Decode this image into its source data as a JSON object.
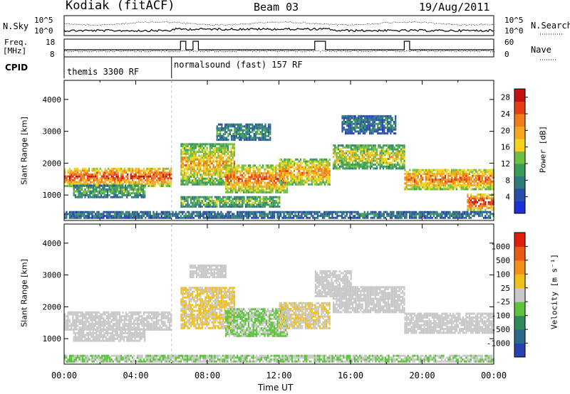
{
  "header": {
    "station": "Kodiak (fitACF)",
    "beam": "Beam 03",
    "date": "19/Aug/2011"
  },
  "sky_panel": {
    "left_label": "N.Sky",
    "right_label": "N.Search",
    "left_ticks": [
      "10^5",
      "10^0"
    ],
    "right_ticks": [
      "10^5",
      "10^0"
    ]
  },
  "freq_panel": {
    "left_label_1": "Freq.",
    "left_label_2": "[MHz]",
    "right_label": "Nave",
    "left_ticks": [
      "18",
      "8"
    ],
    "right_ticks": [
      "60",
      "0"
    ]
  },
  "cpid_panel": {
    "label": "CPID",
    "programs": [
      {
        "name": "themis 3300 RF",
        "start_hour": 0
      },
      {
        "name": "normalsound (fast) 157 RF",
        "start_hour": 6
      }
    ]
  },
  "colors": {
    "grid_line": "#c8c8c8",
    "ground_scatter": "#c8c8c8"
  },
  "chart_data": [
    {
      "type": "heatmap",
      "panel": "power",
      "xlabel": "",
      "ylabel": "Slant Range [km]",
      "xlim": [
        0,
        24
      ],
      "ylim": [
        200,
        4600
      ],
      "yticks": [
        1000,
        2000,
        3000,
        4000
      ],
      "colorbar": {
        "label": "Power [dB]",
        "ticks": [
          4,
          8,
          12,
          16,
          20,
          24,
          28
        ],
        "range": [
          0,
          30
        ],
        "colors": [
          "#1c2fd8",
          "#2a4ea8",
          "#2f7a7a",
          "#3a9a58",
          "#6fbf3f",
          "#f0d51a",
          "#f5a623",
          "#f07b1a",
          "#e63c14",
          "#c41010"
        ]
      },
      "bands": [
        {
          "t0": 0.0,
          "t1": 6.0,
          "r0": 1250,
          "r1": 1850,
          "power": 24
        },
        {
          "t0": 0.5,
          "t1": 4.5,
          "r0": 900,
          "r1": 1300,
          "power": 10
        },
        {
          "t0": 6.5,
          "t1": 9.5,
          "r0": 1300,
          "r1": 2600,
          "power": 18
        },
        {
          "t0": 9.0,
          "t1": 12.5,
          "r0": 1050,
          "r1": 1900,
          "power": 22
        },
        {
          "t0": 12.0,
          "t1": 14.8,
          "r0": 1300,
          "r1": 2100,
          "power": 20
        },
        {
          "t0": 15.0,
          "t1": 19.0,
          "r0": 1800,
          "r1": 2550,
          "power": 16
        },
        {
          "t0": 19.0,
          "t1": 24.0,
          "r0": 1150,
          "r1": 1800,
          "power": 22
        },
        {
          "t0": 22.5,
          "t1": 24.0,
          "r0": 500,
          "r1": 1000,
          "power": 26
        },
        {
          "t0": 6.5,
          "t1": 12.0,
          "r0": 600,
          "r1": 950,
          "power": 12
        },
        {
          "t0": 8.5,
          "t1": 11.5,
          "r0": 2700,
          "r1": 3200,
          "power": 8
        },
        {
          "t0": 15.5,
          "t1": 18.5,
          "r0": 2900,
          "r1": 3500,
          "power": 6
        },
        {
          "t0": 0.0,
          "t1": 24.0,
          "r0": 250,
          "r1": 450,
          "power": 6
        }
      ]
    },
    {
      "type": "heatmap",
      "panel": "velocity",
      "xlabel": "Time UT",
      "ylabel": "Slant Range [km]",
      "xlim": [
        0,
        24
      ],
      "ylim": [
        200,
        4600
      ],
      "xticks": [
        "00:00",
        "04:00",
        "08:00",
        "12:00",
        "16:00",
        "20:00",
        "00:00"
      ],
      "yticks": [
        1000,
        2000,
        3000,
        4000
      ],
      "colorbar": {
        "label": "Velocity [m s⁻¹]",
        "ticks": [
          "1000",
          "500",
          "100",
          "25",
          "-25",
          "-100",
          "-500",
          "-1000"
        ],
        "range": [
          -1200,
          1200
        ],
        "colors": [
          "#2a3fb0",
          "#2c6a8c",
          "#2f8a5a",
          "#5ec23c",
          "#c8c8c8",
          "#f0c01a",
          "#f0901a",
          "#e85a14",
          "#e01e10"
        ]
      },
      "bands": [
        {
          "t0": 0.0,
          "t1": 6.0,
          "r0": 1250,
          "r1": 1850,
          "velocity": 0
        },
        {
          "t0": 0.5,
          "t1": 4.5,
          "r0": 900,
          "r1": 1300,
          "velocity": 0
        },
        {
          "t0": 6.5,
          "t1": 9.5,
          "r0": 1300,
          "r1": 2600,
          "velocity": 150
        },
        {
          "t0": 9.0,
          "t1": 12.5,
          "r0": 1050,
          "r1": 1900,
          "velocity": -150
        },
        {
          "t0": 12.0,
          "t1": 14.8,
          "r0": 1300,
          "r1": 2100,
          "velocity": 120
        },
        {
          "t0": 15.0,
          "t1": 19.0,
          "r0": 1800,
          "r1": 2600,
          "velocity": 0
        },
        {
          "t0": 14.0,
          "t1": 16.0,
          "r0": 2300,
          "r1": 3100,
          "velocity": 0
        },
        {
          "t0": 19.0,
          "t1": 24.0,
          "r0": 1150,
          "r1": 1800,
          "velocity": 0
        },
        {
          "t0": 7.0,
          "t1": 9.0,
          "r0": 2900,
          "r1": 3300,
          "velocity": 0
        },
        {
          "t0": 0.0,
          "t1": 24.0,
          "r0": 250,
          "r1": 450,
          "velocity": -120
        }
      ]
    }
  ]
}
